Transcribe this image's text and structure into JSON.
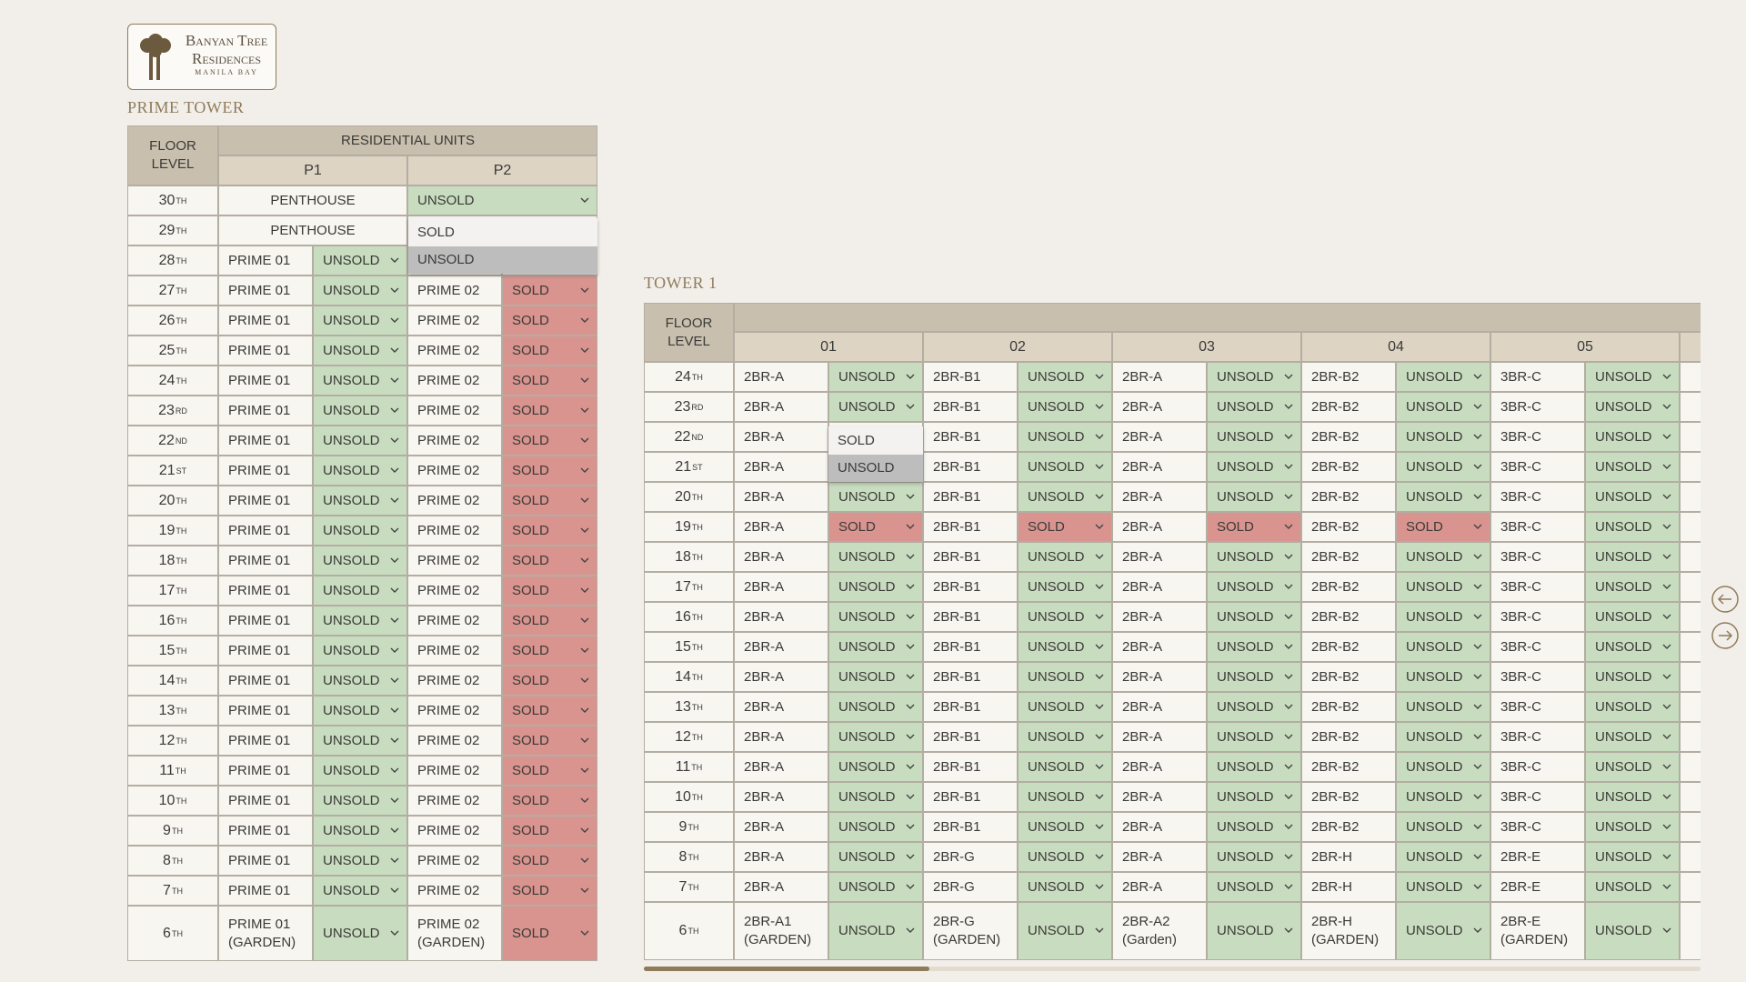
{
  "logo": {
    "line1": "Banyan Tree",
    "line2": "Residences",
    "line3": "MANILA BAY"
  },
  "prime_tower": {
    "title": "PRIME TOWER",
    "floor_header": "FLOOR LEVEL",
    "group_header": "RESIDENTIAL UNITS",
    "columns": [
      "P1",
      "P2"
    ],
    "rows": [
      [
        "30",
        "TH",
        "PENTHOUSE",
        "UNSOLD"
      ],
      [
        "29",
        "TH",
        "PENTHOUSE",
        null
      ],
      [
        "28",
        "TH",
        "PRIME 01",
        "UNSOLD",
        null,
        null
      ],
      [
        "27",
        "TH",
        "PRIME 01",
        "UNSOLD",
        "PRIME 02",
        "SOLD"
      ],
      [
        "26",
        "TH",
        "PRIME 01",
        "UNSOLD",
        "PRIME 02",
        "SOLD"
      ],
      [
        "25",
        "TH",
        "PRIME 01",
        "UNSOLD",
        "PRIME 02",
        "SOLD"
      ],
      [
        "24",
        "TH",
        "PRIME 01",
        "UNSOLD",
        "PRIME 02",
        "SOLD"
      ],
      [
        "23",
        "RD",
        "PRIME 01",
        "UNSOLD",
        "PRIME 02",
        "SOLD"
      ],
      [
        "22",
        "ND",
        "PRIME 01",
        "UNSOLD",
        "PRIME 02",
        "SOLD"
      ],
      [
        "21",
        "ST",
        "PRIME 01",
        "UNSOLD",
        "PRIME 02",
        "SOLD"
      ],
      [
        "20",
        "TH",
        "PRIME 01",
        "UNSOLD",
        "PRIME 02",
        "SOLD"
      ],
      [
        "19",
        "TH",
        "PRIME 01",
        "UNSOLD",
        "PRIME 02",
        "SOLD"
      ],
      [
        "18",
        "TH",
        "PRIME 01",
        "UNSOLD",
        "PRIME 02",
        "SOLD"
      ],
      [
        "17",
        "TH",
        "PRIME 01",
        "UNSOLD",
        "PRIME 02",
        "SOLD"
      ],
      [
        "16",
        "TH",
        "PRIME 01",
        "UNSOLD",
        "PRIME 02",
        "SOLD"
      ],
      [
        "15",
        "TH",
        "PRIME 01",
        "UNSOLD",
        "PRIME 02",
        "SOLD"
      ],
      [
        "14",
        "TH",
        "PRIME 01",
        "UNSOLD",
        "PRIME 02",
        "SOLD"
      ],
      [
        "13",
        "TH",
        "PRIME 01",
        "UNSOLD",
        "PRIME 02",
        "SOLD"
      ],
      [
        "12",
        "TH",
        "PRIME 01",
        "UNSOLD",
        "PRIME 02",
        "SOLD"
      ],
      [
        "11",
        "TH",
        "PRIME 01",
        "UNSOLD",
        "PRIME 02",
        "SOLD"
      ],
      [
        "10",
        "TH",
        "PRIME 01",
        "UNSOLD",
        "PRIME 02",
        "SOLD"
      ],
      [
        "9",
        "TH",
        "PRIME 01",
        "UNSOLD",
        "PRIME 02",
        "SOLD"
      ],
      [
        "8",
        "TH",
        "PRIME 01",
        "UNSOLD",
        "PRIME 02",
        "SOLD"
      ],
      [
        "7",
        "TH",
        "PRIME 01",
        "UNSOLD",
        "PRIME 02",
        "SOLD"
      ],
      [
        "6",
        "TH",
        "PRIME 01\n(GARDEN)",
        "UNSOLD",
        "PRIME 02\n(GARDEN)",
        "SOLD"
      ]
    ],
    "dropdown": [
      "SOLD",
      "UNSOLD"
    ]
  },
  "tower_1": {
    "title": "TOWER 1",
    "floor_header": "FLOOR LEVEL",
    "columns": [
      "01",
      "02",
      "03",
      "04",
      "05"
    ],
    "rows": [
      [
        "24",
        "TH",
        "2BR-A",
        "UNSOLD",
        "2BR-B1",
        "UNSOLD",
        "2BR-A",
        "UNSOLD",
        "2BR-B2",
        "UNSOLD",
        "3BR-C",
        "UNSOLD"
      ],
      [
        "23",
        "RD",
        "2BR-A",
        "UNSOLD",
        "2BR-B1",
        "UNSOLD",
        "2BR-A",
        "UNSOLD",
        "2BR-B2",
        "UNSOLD",
        "3BR-C",
        "UNSOLD"
      ],
      [
        "22",
        "ND",
        "2BR-A",
        null,
        "2BR-B1",
        "UNSOLD",
        "2BR-A",
        "UNSOLD",
        "2BR-B2",
        "UNSOLD",
        "3BR-C",
        "UNSOLD"
      ],
      [
        "21",
        "ST",
        "2BR-A",
        null,
        "2BR-B1",
        "UNSOLD",
        "2BR-A",
        "UNSOLD",
        "2BR-B2",
        "UNSOLD",
        "3BR-C",
        "UNSOLD"
      ],
      [
        "20",
        "TH",
        "2BR-A",
        "UNSOLD",
        "2BR-B1",
        "UNSOLD",
        "2BR-A",
        "UNSOLD",
        "2BR-B2",
        "UNSOLD",
        "3BR-C",
        "UNSOLD"
      ],
      [
        "19",
        "TH",
        "2BR-A",
        "SOLD",
        "2BR-B1",
        "SOLD",
        "2BR-A",
        "SOLD",
        "2BR-B2",
        "SOLD",
        "3BR-C",
        "UNSOLD"
      ],
      [
        "18",
        "TH",
        "2BR-A",
        "UNSOLD",
        "2BR-B1",
        "UNSOLD",
        "2BR-A",
        "UNSOLD",
        "2BR-B2",
        "UNSOLD",
        "3BR-C",
        "UNSOLD"
      ],
      [
        "17",
        "TH",
        "2BR-A",
        "UNSOLD",
        "2BR-B1",
        "UNSOLD",
        "2BR-A",
        "UNSOLD",
        "2BR-B2",
        "UNSOLD",
        "3BR-C",
        "UNSOLD"
      ],
      [
        "16",
        "TH",
        "2BR-A",
        "UNSOLD",
        "2BR-B1",
        "UNSOLD",
        "2BR-A",
        "UNSOLD",
        "2BR-B2",
        "UNSOLD",
        "3BR-C",
        "UNSOLD"
      ],
      [
        "15",
        "TH",
        "2BR-A",
        "UNSOLD",
        "2BR-B1",
        "UNSOLD",
        "2BR-A",
        "UNSOLD",
        "2BR-B2",
        "UNSOLD",
        "3BR-C",
        "UNSOLD"
      ],
      [
        "14",
        "TH",
        "2BR-A",
        "UNSOLD",
        "2BR-B1",
        "UNSOLD",
        "2BR-A",
        "UNSOLD",
        "2BR-B2",
        "UNSOLD",
        "3BR-C",
        "UNSOLD"
      ],
      [
        "13",
        "TH",
        "2BR-A",
        "UNSOLD",
        "2BR-B1",
        "UNSOLD",
        "2BR-A",
        "UNSOLD",
        "2BR-B2",
        "UNSOLD",
        "3BR-C",
        "UNSOLD"
      ],
      [
        "12",
        "TH",
        "2BR-A",
        "UNSOLD",
        "2BR-B1",
        "UNSOLD",
        "2BR-A",
        "UNSOLD",
        "2BR-B2",
        "UNSOLD",
        "3BR-C",
        "UNSOLD"
      ],
      [
        "11",
        "TH",
        "2BR-A",
        "UNSOLD",
        "2BR-B1",
        "UNSOLD",
        "2BR-A",
        "UNSOLD",
        "2BR-B2",
        "UNSOLD",
        "3BR-C",
        "UNSOLD"
      ],
      [
        "10",
        "TH",
        "2BR-A",
        "UNSOLD",
        "2BR-B1",
        "UNSOLD",
        "2BR-A",
        "UNSOLD",
        "2BR-B2",
        "UNSOLD",
        "3BR-C",
        "UNSOLD"
      ],
      [
        "9",
        "TH",
        "2BR-A",
        "UNSOLD",
        "2BR-B1",
        "UNSOLD",
        "2BR-A",
        "UNSOLD",
        "2BR-B2",
        "UNSOLD",
        "3BR-C",
        "UNSOLD"
      ],
      [
        "8",
        "TH",
        "2BR-A",
        "UNSOLD",
        "2BR-G",
        "UNSOLD",
        "2BR-A",
        "UNSOLD",
        "2BR-H",
        "UNSOLD",
        "2BR-E",
        "UNSOLD"
      ],
      [
        "7",
        "TH",
        "2BR-A",
        "UNSOLD",
        "2BR-G",
        "UNSOLD",
        "2BR-A",
        "UNSOLD",
        "2BR-H",
        "UNSOLD",
        "2BR-E",
        "UNSOLD"
      ],
      [
        "6",
        "TH",
        "2BR-A1\n(GARDEN)",
        "UNSOLD",
        "2BR-G\n(GARDEN)",
        "UNSOLD",
        "2BR-A2\n(Garden)",
        "UNSOLD",
        "2BR-H\n(GARDEN)",
        "UNSOLD",
        "2BR-E\n(GARDEN)",
        "UNSOLD"
      ]
    ],
    "dropdown": [
      "SOLD",
      "UNSOLD"
    ]
  }
}
